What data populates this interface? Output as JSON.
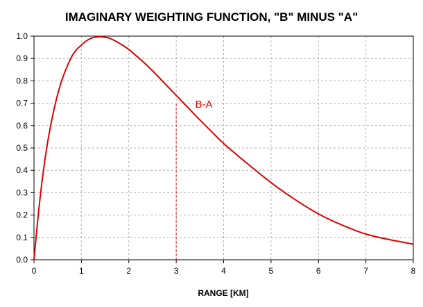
{
  "chart_data": {
    "type": "line",
    "title": "IMAGINARY WEIGHTING FUNCTION, \"B\" MINUS \"A\"",
    "xlabel": "RANGE [KM]",
    "ylabel": "",
    "xlim": [
      0,
      8
    ],
    "ylim": [
      0,
      1.0
    ],
    "xticks": [
      "0",
      "1",
      "2",
      "3",
      "4",
      "5",
      "6",
      "7",
      "8"
    ],
    "yticks": [
      "0.0",
      "0.1",
      "0.2",
      "0.3",
      "0.4",
      "0.5",
      "0.6",
      "0.7",
      "0.8",
      "0.9",
      "1.0"
    ],
    "grid": true,
    "series": [
      {
        "name": "B-A",
        "color": "#e00000",
        "x": [
          0,
          0.1,
          0.2,
          0.3,
          0.4,
          0.5,
          0.6,
          0.7,
          0.8,
          0.9,
          1.0,
          1.1,
          1.2,
          1.3,
          1.4,
          1.5,
          1.6,
          1.7,
          1.8,
          1.9,
          2.0,
          2.25,
          2.5,
          2.75,
          3.0,
          3.25,
          3.5,
          3.75,
          4.0,
          4.5,
          5.0,
          5.5,
          6.0,
          6.5,
          7.0,
          7.5,
          8.0
        ],
        "y": [
          0.0,
          0.22,
          0.4,
          0.54,
          0.65,
          0.74,
          0.81,
          0.865,
          0.91,
          0.94,
          0.96,
          0.978,
          0.99,
          0.996,
          0.997,
          0.995,
          0.99,
          0.98,
          0.968,
          0.955,
          0.94,
          0.895,
          0.845,
          0.79,
          0.735,
          0.68,
          0.625,
          0.572,
          0.52,
          0.43,
          0.345,
          0.27,
          0.205,
          0.155,
          0.115,
          0.09,
          0.07
        ]
      }
    ],
    "annotations": [
      {
        "text": "B-A",
        "x": 3.4,
        "y": 0.68,
        "color": "#e00000"
      }
    ],
    "reference_line": {
      "x": 3,
      "y": 0.697,
      "style": "dashed",
      "color": "#e00000"
    }
  }
}
